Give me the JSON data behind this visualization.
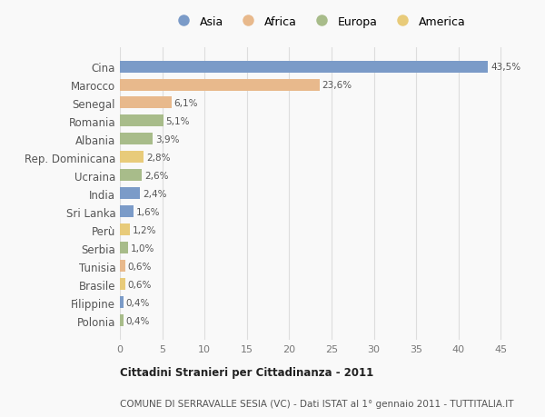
{
  "categories": [
    "Cina",
    "Marocco",
    "Senegal",
    "Romania",
    "Albania",
    "Rep. Dominicana",
    "Ucraina",
    "India",
    "Sri Lanka",
    "Perù",
    "Serbia",
    "Tunisia",
    "Brasile",
    "Filippine",
    "Polonia"
  ],
  "values": [
    43.5,
    23.6,
    6.1,
    5.1,
    3.9,
    2.8,
    2.6,
    2.4,
    1.6,
    1.2,
    1.0,
    0.6,
    0.6,
    0.4,
    0.4
  ],
  "labels": [
    "43,5%",
    "23,6%",
    "6,1%",
    "5,1%",
    "3,9%",
    "2,8%",
    "2,6%",
    "2,4%",
    "1,6%",
    "1,2%",
    "1,0%",
    "0,6%",
    "0,6%",
    "0,4%",
    "0,4%"
  ],
  "continents": [
    "Asia",
    "Africa",
    "Africa",
    "Europa",
    "Europa",
    "America",
    "Europa",
    "Asia",
    "Asia",
    "America",
    "Europa",
    "Africa",
    "America",
    "Asia",
    "Europa"
  ],
  "continent_colors": {
    "Asia": "#7b9bc8",
    "Africa": "#e8b98c",
    "Europa": "#a8bc8a",
    "America": "#e8cb7a"
  },
  "legend_order": [
    "Asia",
    "Africa",
    "Europa",
    "America"
  ],
  "title_bold": "Cittadini Stranieri per Cittadinanza - 2011",
  "title_sub": "COMUNE DI SERRAVALLE SESIA (VC) - Dati ISTAT al 1° gennaio 2011 - TUTTITALIA.IT",
  "xlim": [
    0,
    47
  ],
  "xticks": [
    0,
    5,
    10,
    15,
    20,
    25,
    30,
    35,
    40,
    45
  ],
  "background_color": "#f9f9f9",
  "bar_height": 0.65,
  "grid_color": "#dddddd"
}
